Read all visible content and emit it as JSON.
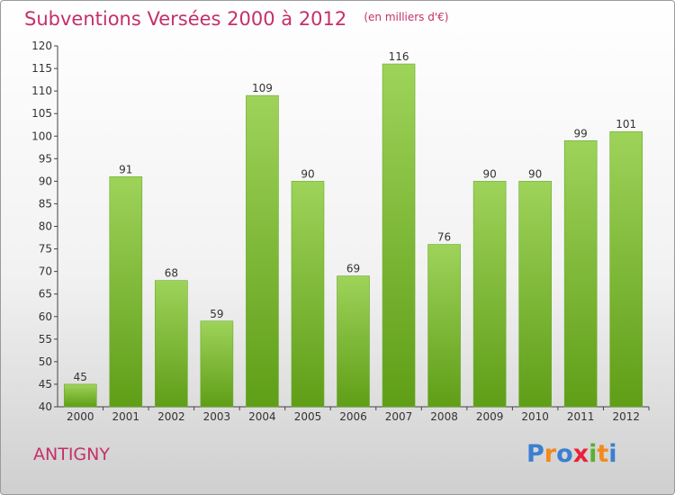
{
  "header": {
    "title": "Subventions Versées 2000 à 2012",
    "unit": "(en milliers d'€)"
  },
  "footer": {
    "commune": "ANTIGNY",
    "brand_letters": [
      {
        "ch": "P",
        "color": "#3b7fd1"
      },
      {
        "ch": "r",
        "color": "#f28a1e"
      },
      {
        "ch": "o",
        "color": "#3b7fd1"
      },
      {
        "ch": "x",
        "color": "#e8223a"
      },
      {
        "ch": "i",
        "color": "#5bb030"
      },
      {
        "ch": "t",
        "color": "#f28a1e"
      },
      {
        "ch": "i",
        "color": "#3b7fd1"
      }
    ]
  },
  "colors": {
    "bar_top": "#9ed35a",
    "bar_bottom": "#5f9e17",
    "title": "#c4306a"
  },
  "chart_data": {
    "type": "bar",
    "title": "Subventions Versées 2000 à 2012",
    "subtitle": "(en milliers d'€)",
    "xlabel": "",
    "ylabel": "",
    "categories": [
      "2000",
      "2001",
      "2002",
      "2003",
      "2004",
      "2005",
      "2006",
      "2007",
      "2008",
      "2009",
      "2010",
      "2011",
      "2012"
    ],
    "values": [
      45,
      91,
      68,
      59,
      109,
      90,
      69,
      116,
      76,
      90,
      90,
      99,
      101
    ],
    "ylim": [
      40,
      120
    ],
    "yticks": [
      40,
      45,
      50,
      55,
      60,
      65,
      70,
      75,
      80,
      85,
      90,
      95,
      100,
      105,
      110,
      115,
      120
    ],
    "grid": false,
    "legend": "none"
  }
}
